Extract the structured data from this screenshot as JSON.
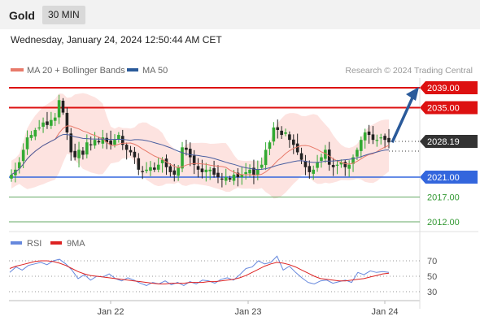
{
  "header": {
    "title": "Gold",
    "timeframe": "30 MIN"
  },
  "datetime": "Wednesday, January 24, 2024 12:50:44 AM CET",
  "watermark": "Research © 2024 Trading Central",
  "colors": {
    "up": "#33aa33",
    "down": "#222222",
    "ma20": "#e87a6a",
    "bands": "#fcd9d6",
    "ma50": "#4a5fa0",
    "resistance": "#dd1111",
    "pivot": "#3366dd",
    "support": "#66aa66",
    "rsi": "#6688dd",
    "rsi_ma": "#dd2222",
    "arrow": "#2a5a9a"
  },
  "chart_data": [
    {
      "type": "candlestick",
      "legend": [
        {
          "name": "MA 20 + Bollinger Bands",
          "color": "#e87a6a"
        },
        {
          "name": "MA 50",
          "color": "#2a5a9a"
        }
      ],
      "x_ticks": [
        "Jan 22",
        "Jan 23",
        "Jan 24"
      ],
      "current_price": "2028.19",
      "levels": [
        {
          "label": "2039.00",
          "value": 2039.0,
          "kind": "resistance"
        },
        {
          "label": "2035.00",
          "value": 2035.0,
          "kind": "resistance"
        },
        {
          "label": "2021.00",
          "value": 2021.0,
          "kind": "pivot"
        },
        {
          "label": "2017.00",
          "value": 2017.0,
          "kind": "support"
        },
        {
          "label": "2012.00",
          "value": 2012.0,
          "kind": "support"
        }
      ],
      "close_path": [
        2021.5,
        2022.5,
        2024,
        2026.5,
        2029,
        2029.5,
        2030.5,
        2031,
        2032,
        2031.5,
        2032.5,
        2033,
        2036.5,
        2034,
        2030,
        2026,
        2025,
        2026.5,
        2025.5,
        2028,
        2027.5,
        2028.5,
        2028,
        2029,
        2028,
        2027.5,
        2028.5,
        2029.5,
        2027.5,
        2026.5,
        2026,
        2025,
        2022.5,
        2022,
        2022.5,
        2023,
        2022.5,
        2023.5,
        2024.5,
        2023,
        2022,
        2021.5,
        2023,
        2027,
        2026.5,
        2025,
        2023.5,
        2022.5,
        2022,
        2022.5,
        2022.5,
        2021.5,
        2021,
        2020.5,
        2021,
        2020.5,
        2021.5,
        2021,
        2021.5,
        2022,
        2022.5,
        2021.5,
        2022.5,
        2023.5,
        2026.5,
        2028,
        2031,
        2030.5,
        2029.5,
        2030,
        2028.5,
        2027.5,
        2026,
        2024.5,
        2023,
        2022,
        2022.5,
        2024,
        2025,
        2026.5,
        2023.5,
        2023,
        2023.5,
        2024,
        2023,
        2023.5,
        2025,
        2026.5,
        2028.5,
        2030,
        2029.5,
        2028.5,
        2028.5,
        2029,
        2028.5,
        2028
      ]
    },
    {
      "type": "line",
      "legend": [
        {
          "name": "RSI",
          "color": "#6688dd"
        },
        {
          "name": "9MA",
          "color": "#dd2222"
        }
      ],
      "y_ticks": [
        30,
        50,
        70
      ],
      "ylim": [
        20,
        80
      ],
      "series": [
        {
          "name": "RSI",
          "values": [
            55,
            62,
            58,
            64,
            66,
            68,
            65,
            70,
            72,
            66,
            58,
            47,
            52,
            45,
            50,
            49,
            53,
            47,
            44,
            48,
            45,
            41,
            38,
            42,
            40,
            44,
            39,
            42,
            38,
            43,
            40,
            45,
            44,
            41,
            46,
            48,
            45,
            52,
            60,
            62,
            70,
            66,
            68,
            76,
            58,
            63,
            55,
            48,
            42,
            40,
            44,
            45,
            41,
            43,
            45,
            42,
            55,
            52,
            57,
            55,
            56,
            55
          ]
        },
        {
          "name": "9MA",
          "values": [
            60,
            63,
            65,
            67,
            69,
            70,
            70,
            69,
            67,
            64,
            60,
            56,
            53,
            51,
            50,
            49,
            48,
            47,
            46,
            45,
            44,
            43,
            42,
            41,
            40,
            40,
            41,
            41,
            41,
            42,
            42,
            42,
            43,
            43,
            44,
            45,
            46,
            48,
            51,
            55,
            59,
            63,
            66,
            68,
            67,
            65,
            62,
            58,
            54,
            50,
            47,
            46,
            45,
            44,
            44,
            45,
            46,
            47,
            49,
            51,
            53,
            54
          ]
        }
      ]
    }
  ]
}
